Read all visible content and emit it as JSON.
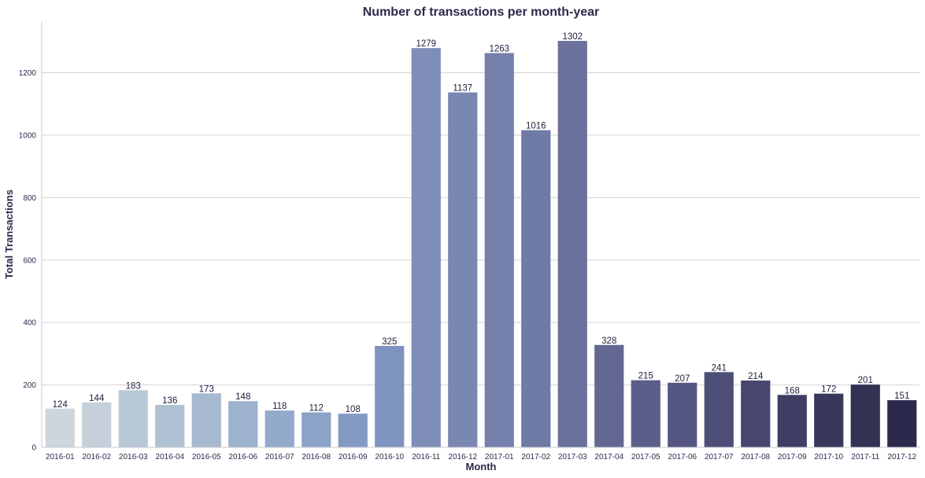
{
  "chart_data": {
    "type": "bar",
    "title": "Number of transactions per month-year",
    "xlabel": "Month",
    "ylabel": "Total Transactions",
    "categories": [
      "2016-01",
      "2016-02",
      "2016-03",
      "2016-04",
      "2016-05",
      "2016-06",
      "2016-07",
      "2016-08",
      "2016-09",
      "2016-10",
      "2016-11",
      "2016-12",
      "2017-01",
      "2017-02",
      "2017-03",
      "2017-04",
      "2017-05",
      "2017-06",
      "2017-07",
      "2017-08",
      "2017-09",
      "2017-10",
      "2017-11",
      "2017-12"
    ],
    "values": [
      124,
      144,
      183,
      136,
      173,
      148,
      118,
      112,
      108,
      325,
      1279,
      1137,
      1263,
      1016,
      1302,
      328,
      215,
      207,
      241,
      214,
      168,
      172,
      201,
      151
    ],
    "ylim": [
      0,
      1365
    ],
    "yticks": [
      0,
      200,
      400,
      600,
      800,
      1000,
      1200
    ],
    "grid": "horizontal",
    "colors": [
      "#cdd6dd",
      "#c5d0da",
      "#b9c8d6",
      "#b0c1d3",
      "#a6b9cf",
      "#9db2cc",
      "#94aacb",
      "#8ca2c7",
      "#859ac3",
      "#7f93c0",
      "#7e8eb8",
      "#7a87b3",
      "#7580ac",
      "#707aa6",
      "#6a719c",
      "#636893",
      "#5c5e8a",
      "#555681",
      "#4d4e77",
      "#46466e",
      "#3f3f65",
      "#38385c",
      "#323253",
      "#2b2a4c"
    ]
  }
}
